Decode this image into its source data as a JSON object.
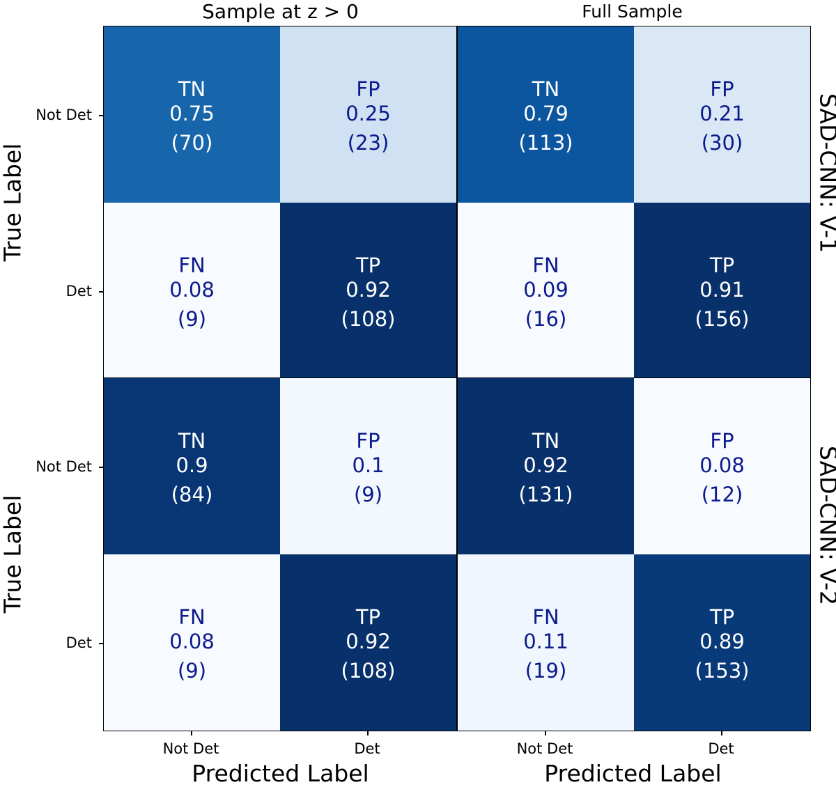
{
  "chart_data": {
    "type": "heatmap",
    "titles": [
      "Sample at z > 0",
      "Full Sample"
    ],
    "row_labels": [
      "SAD-CNN: V-1",
      "SAD-CNN: V-2"
    ],
    "xlabel": "Predicted Label",
    "ylabel": "True Label",
    "x_ticks": [
      "Not Det",
      "Det"
    ],
    "y_ticks": [
      "Not Det",
      "Det"
    ],
    "colormap": "Blues",
    "panels": [
      {
        "row": 0,
        "col": 0,
        "cells": [
          {
            "name": "TN",
            "rate": "0.75",
            "count": "(70)",
            "value": 0.75
          },
          {
            "name": "FP",
            "rate": "0.25",
            "count": "(23)",
            "value": 0.25
          },
          {
            "name": "FN",
            "rate": "0.08",
            "count": "(9)",
            "value": 0.08
          },
          {
            "name": "TP",
            "rate": "0.92",
            "count": "(108)",
            "value": 0.92
          }
        ]
      },
      {
        "row": 0,
        "col": 1,
        "cells": [
          {
            "name": "TN",
            "rate": "0.79",
            "count": "(113)",
            "value": 0.79
          },
          {
            "name": "FP",
            "rate": "0.21",
            "count": "(30)",
            "value": 0.21
          },
          {
            "name": "FN",
            "rate": "0.09",
            "count": "(16)",
            "value": 0.09
          },
          {
            "name": "TP",
            "rate": "0.91",
            "count": "(156)",
            "value": 0.91
          }
        ]
      },
      {
        "row": 1,
        "col": 0,
        "cells": [
          {
            "name": "TN",
            "rate": "0.9",
            "count": "(84)",
            "value": 0.9
          },
          {
            "name": "FP",
            "rate": "0.1",
            "count": "(9)",
            "value": 0.1
          },
          {
            "name": "FN",
            "rate": "0.08",
            "count": "(9)",
            "value": 0.08
          },
          {
            "name": "TP",
            "rate": "0.92",
            "count": "(108)",
            "value": 0.92
          }
        ]
      },
      {
        "row": 1,
        "col": 1,
        "cells": [
          {
            "name": "TN",
            "rate": "0.92",
            "count": "(131)",
            "value": 0.92
          },
          {
            "name": "FP",
            "rate": "0.08",
            "count": "(12)",
            "value": 0.08
          },
          {
            "name": "FN",
            "rate": "0.11",
            "count": "(19)",
            "value": 0.11
          },
          {
            "name": "TP",
            "rate": "0.89",
            "count": "(153)",
            "value": 0.89
          }
        ]
      }
    ]
  }
}
